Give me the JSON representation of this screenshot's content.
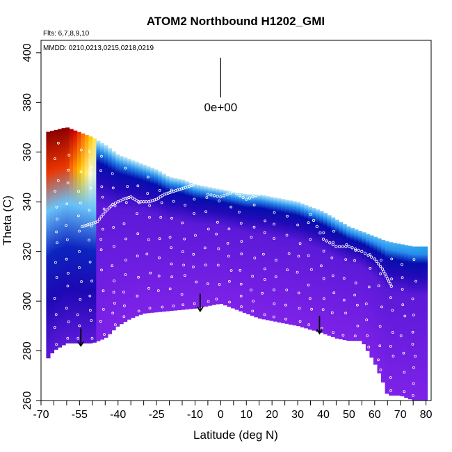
{
  "chart_data": {
    "type": "heatmap",
    "title": "ATOM2 Northbound H1202_GMI",
    "flights_note": "Flts: 6,7,8,9,10",
    "dates_note": "MMDD: 0210,0213,0215,0218,0219",
    "xlabel": "Latitude (deg N)",
    "ylabel": "Theta (C)",
    "xlim": [
      -70,
      82
    ],
    "ylim": [
      260,
      405
    ],
    "x_ticks": [
      -70,
      -55,
      -40,
      -25,
      -10,
      0,
      10,
      20,
      30,
      40,
      50,
      60,
      70,
      80
    ],
    "x_minor_ticks": [
      -65,
      -60,
      -50,
      -45,
      -35,
      -30,
      -20,
      -15,
      -5,
      5,
      15,
      25,
      35,
      45,
      55,
      65,
      75
    ],
    "y_ticks": [
      260,
      280,
      300,
      320,
      340,
      360,
      380,
      400
    ],
    "scale_bar": {
      "label": "0e+00",
      "x": 0,
      "y_top": 398,
      "y_bottom": 382
    },
    "arrows": [
      {
        "x": -54.5,
        "y_top": 289,
        "y_bottom": 282
      },
      {
        "x": -8,
        "y_top": 303,
        "y_bottom": 296
      },
      {
        "x": 38.5,
        "y_top": 294,
        "y_bottom": 287
      }
    ],
    "field_top_boundary": [
      [
        -68,
        368
      ],
      [
        -60,
        370
      ],
      [
        -50,
        366
      ],
      [
        -45,
        363
      ],
      [
        -40,
        359
      ],
      [
        -35,
        357
      ],
      [
        -30,
        355
      ],
      [
        -25,
        353
      ],
      [
        -20,
        350
      ],
      [
        -15,
        349
      ],
      [
        -10,
        347
      ],
      [
        -5,
        346
      ],
      [
        0,
        345
      ],
      [
        5,
        344
      ],
      [
        10,
        343
      ],
      [
        15,
        343
      ],
      [
        20,
        342
      ],
      [
        25,
        341
      ],
      [
        30,
        340
      ],
      [
        35,
        338
      ],
      [
        40,
        336
      ],
      [
        45,
        333
      ],
      [
        50,
        330
      ],
      [
        55,
        328
      ],
      [
        60,
        326
      ],
      [
        65,
        324
      ],
      [
        70,
        323
      ],
      [
        75,
        322
      ],
      [
        79,
        322
      ]
    ],
    "field_bottom_boundary": [
      [
        -68,
        276
      ],
      [
        -65,
        280
      ],
      [
        -60,
        283
      ],
      [
        -50,
        283
      ],
      [
        -45,
        285
      ],
      [
        -40,
        290
      ],
      [
        -35,
        293
      ],
      [
        -30,
        295
      ],
      [
        -20,
        296
      ],
      [
        -10,
        297
      ],
      [
        -5,
        298
      ],
      [
        0,
        299
      ],
      [
        10,
        295
      ],
      [
        15,
        293
      ],
      [
        20,
        292
      ],
      [
        30,
        290
      ],
      [
        40,
        287
      ],
      [
        45,
        285
      ],
      [
        50,
        284
      ],
      [
        55,
        284
      ],
      [
        60,
        275
      ],
      [
        63,
        268
      ],
      [
        65,
        262
      ],
      [
        70,
        262
      ],
      [
        75,
        260
      ],
      [
        80,
        260
      ]
    ],
    "colormap": [
      "#7e22e8",
      "#3a10c8",
      "#0000a0",
      "#1848e0",
      "#2aa0f0",
      "#a8e4ff",
      "#fffad0",
      "#ffd000",
      "#ff6a00",
      "#d40000",
      "#8a0000"
    ],
    "sample_tracks": [
      {
        "lat": [
          -54,
          -51,
          -48,
          -45,
          -42,
          -38,
          -35,
          -32,
          -28,
          -25,
          -22,
          -19,
          -16,
          -13,
          -10
        ],
        "theta": [
          330,
          331,
          332,
          336,
          339,
          341,
          342,
          340,
          340,
          341,
          343,
          344,
          345,
          346,
          347
        ]
      },
      {
        "lat": [
          -5,
          0,
          5,
          10,
          15,
          20,
          25
        ],
        "theta": [
          343,
          342,
          344,
          341,
          343,
          345,
          344
        ]
      },
      {
        "lat": [
          35,
          40,
          45,
          50,
          55,
          60,
          63,
          65,
          67
        ],
        "theta": [
          335,
          325,
          322,
          322,
          320,
          317,
          313,
          309,
          305
        ]
      }
    ]
  }
}
